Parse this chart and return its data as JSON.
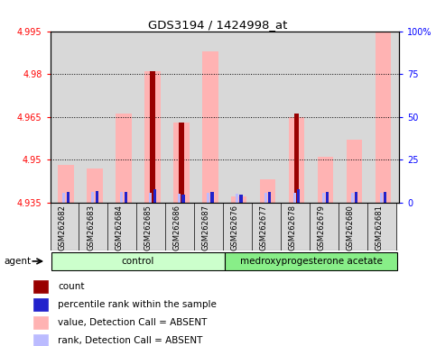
{
  "title": "GDS3194 / 1424998_at",
  "samples": [
    "GSM262682",
    "GSM262683",
    "GSM262684",
    "GSM262685",
    "GSM262686",
    "GSM262687",
    "GSM262676",
    "GSM262677",
    "GSM262678",
    "GSM262679",
    "GSM262680",
    "GSM262681"
  ],
  "group_labels": [
    "control",
    "medroxyprogesterone acetate"
  ],
  "ylim_left": [
    4.935,
    4.995
  ],
  "ylim_right": [
    0,
    100
  ],
  "yticks_left": [
    4.935,
    4.95,
    4.965,
    4.98,
    4.995
  ],
  "yticks_right": [
    0,
    25,
    50,
    75,
    100
  ],
  "ytick_labels_left": [
    "4.935",
    "4.95",
    "4.965",
    "4.98",
    "4.995"
  ],
  "ytick_labels_right": [
    "0",
    "25",
    "50",
    "75",
    "100%"
  ],
  "pink_bar_heights": [
    4.948,
    4.947,
    4.966,
    4.981,
    4.963,
    4.988,
    4.937,
    4.943,
    4.965,
    4.951,
    4.957,
    4.995
  ],
  "red_bar_heights": [
    4.935,
    4.935,
    4.935,
    4.981,
    4.963,
    4.935,
    4.935,
    4.935,
    4.966,
    4.935,
    4.935,
    4.935
  ],
  "blue_bar_heights": [
    4.9388,
    4.939,
    4.9387,
    4.9396,
    4.9376,
    4.9386,
    4.9376,
    4.9387,
    4.9396,
    4.9386,
    4.9386,
    4.9386
  ],
  "lightblue_bar_heights": [
    4.9383,
    4.9386,
    4.9386,
    4.9384,
    4.9382,
    4.9383,
    4.9381,
    4.9383,
    4.9383,
    4.9383,
    4.9383,
    4.9384
  ],
  "base": 4.935,
  "pink_color": "#ffb3b3",
  "red_color": "#990000",
  "blue_color": "#2222cc",
  "lightblue_color": "#bbbbff",
  "bg_color": "#d8d8d8",
  "ctrl_color": "#ccffcc",
  "med_color": "#88ee88",
  "legend_items": [
    "count",
    "percentile rank within the sample",
    "value, Detection Call = ABSENT",
    "rank, Detection Call = ABSENT"
  ],
  "legend_colors": [
    "#990000",
    "#2222cc",
    "#ffb3b3",
    "#bbbbff"
  ],
  "agent_label": "agent"
}
